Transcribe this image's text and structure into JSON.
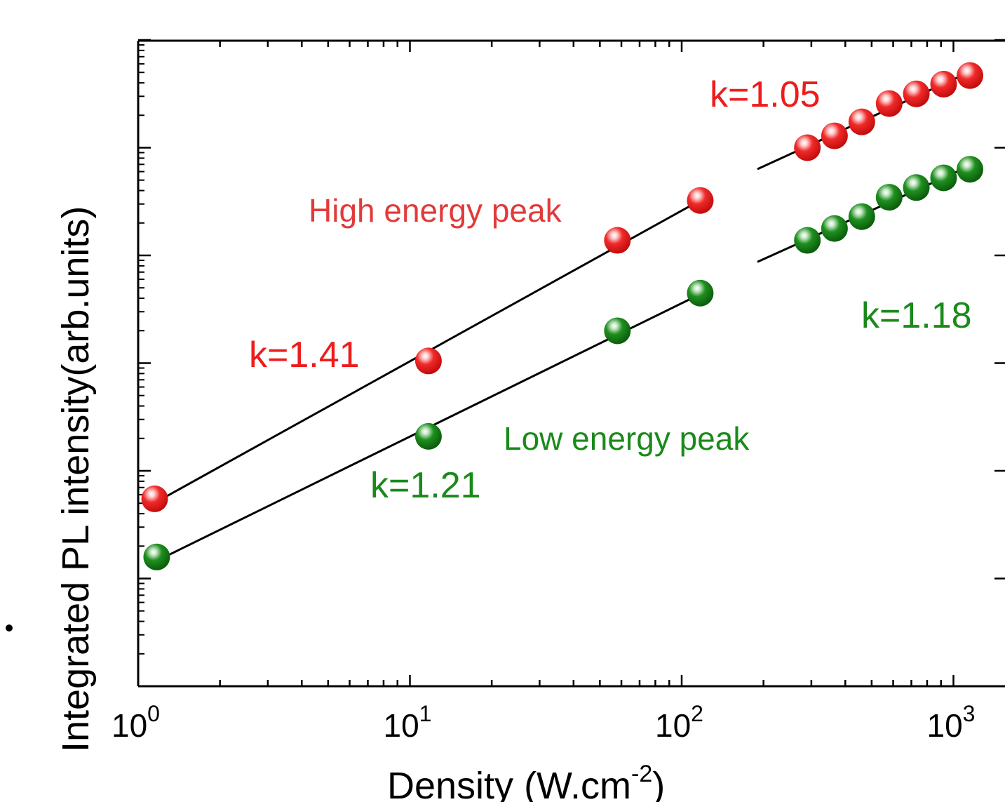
{
  "chart_data": {
    "type": "scatter",
    "xlabel": "Density (W.cm",
    "xlabel_sup": "-2",
    "xlabel_end": ")",
    "ylabel": "Integrated PL intensity(arb.units)",
    "xscale": "log",
    "yscale": "log",
    "xlim": [
      1,
      1200
    ],
    "ylim_decades": [
      0,
      6
    ],
    "x_ticks": [
      {
        "value": 1,
        "base": "10",
        "exp": "0"
      },
      {
        "value": 10,
        "base": "10",
        "exp": "1"
      },
      {
        "value": 100,
        "base": "10",
        "exp": "2"
      },
      {
        "value": 1000,
        "base": "10",
        "exp": "3"
      }
    ],
    "grid": false,
    "series": [
      {
        "name": "High energy peak",
        "color": "#ee1c1c",
        "x": [
          1.15,
          11.7,
          58,
          117,
          290,
          365,
          460,
          580,
          730,
          920,
          1150
        ],
        "y_decades": [
          1.74,
          3.02,
          4.14,
          4.51,
          5.0,
          5.11,
          5.24,
          5.41,
          5.5,
          5.59,
          5.67
        ]
      },
      {
        "name": "Low energy peak",
        "color": "#1a8a1a",
        "x": [
          1.17,
          11.7,
          58,
          117,
          290,
          365,
          460,
          580,
          730,
          920,
          1150
        ],
        "y_decades": [
          1.2,
          2.32,
          3.3,
          3.65,
          4.14,
          4.25,
          4.36,
          4.54,
          4.63,
          4.72,
          4.8
        ]
      }
    ],
    "fits": [
      {
        "series": "High energy peak",
        "label": "k=1.41",
        "x_range": [
          1.15,
          117
        ]
      },
      {
        "series": "High energy peak",
        "label": "k=1.05",
        "x_range": [
          190,
          1200
        ]
      },
      {
        "series": "Low energy peak",
        "label": "k=1.21",
        "x_range": [
          1.15,
          117
        ]
      },
      {
        "series": "Low energy peak",
        "label": "k=1.18",
        "x_range": [
          190,
          1200
        ]
      }
    ],
    "annotations": [
      {
        "text": "High energy peak",
        "color": "#e23a3a"
      },
      {
        "text": "k=1.41",
        "color": "#ee1c1c"
      },
      {
        "text": "k=1.05",
        "color": "#ee1c1c"
      },
      {
        "text": "Low energy peak",
        "color": "#1a8a1a"
      },
      {
        "text": "k=1.21",
        "color": "#1a8a1a"
      },
      {
        "text": "k=1.18",
        "color": "#1a8a1a"
      }
    ]
  }
}
